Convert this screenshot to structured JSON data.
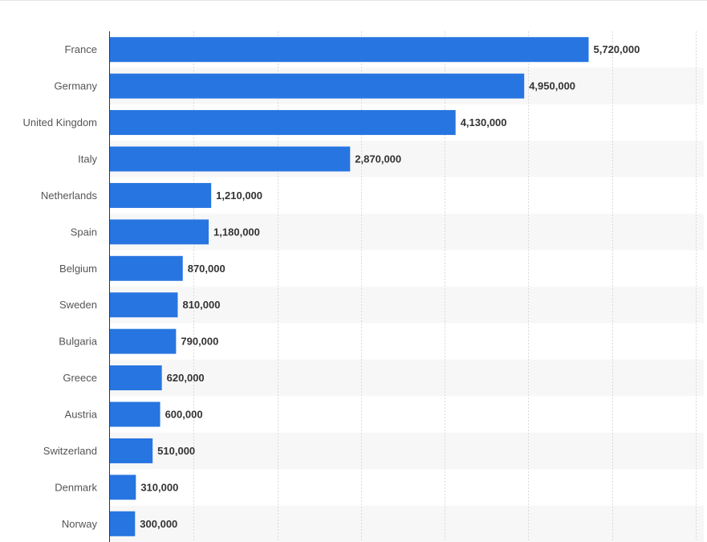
{
  "chart_data": {
    "type": "bar",
    "orientation": "horizontal",
    "categories": [
      "France",
      "Germany",
      "United Kingdom",
      "Italy",
      "Netherlands",
      "Spain",
      "Belgium",
      "Sweden",
      "Bulgaria",
      "Greece",
      "Austria",
      "Switzerland",
      "Denmark",
      "Norway"
    ],
    "values": [
      5720000,
      4950000,
      4130000,
      2870000,
      1210000,
      1180000,
      870000,
      810000,
      790000,
      620000,
      600000,
      510000,
      310000,
      300000
    ],
    "value_labels": [
      "5,720,000",
      "4,950,000",
      "4,130,000",
      "2,870,000",
      "1,210,000",
      "1,180,000",
      "870,000",
      "810,000",
      "790,000",
      "620,000",
      "600,000",
      "510,000",
      "310,000",
      "300,000"
    ],
    "title": "",
    "xlabel": "",
    "ylabel": "",
    "xlim": [
      0,
      7000000
    ],
    "grid_step": 1000000,
    "grid": true,
    "legend": "none"
  },
  "colors": {
    "bar": "#2775e0",
    "grid": "#d9d9d9",
    "stripe": "#f7f7f7",
    "axis": "#333333"
  }
}
